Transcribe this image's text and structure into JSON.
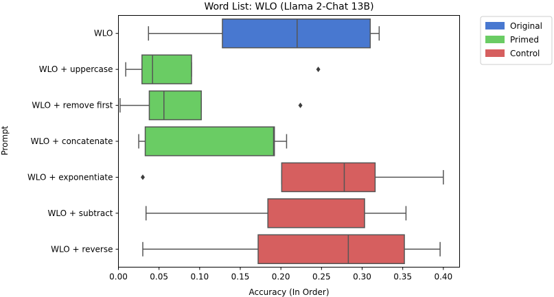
{
  "chart_data": {
    "type": "boxplot",
    "orientation": "horizontal",
    "title": "Word List: WLO (Llama 2-Chat 13B)",
    "xlabel": "Accuracy (In Order)",
    "ylabel": "Prompt",
    "xlim": [
      0.0,
      0.42
    ],
    "xticks": [
      "0.00",
      "0.05",
      "0.10",
      "0.15",
      "0.20",
      "0.25",
      "0.30",
      "0.35",
      "0.40"
    ],
    "grid": false,
    "legend_position": "outside-top-right",
    "legend": [
      {
        "name": "Original",
        "color": "#4878d0"
      },
      {
        "name": "Primed",
        "color": "#6acc64"
      },
      {
        "name": "Control",
        "color": "#d65f5f"
      }
    ],
    "categories": [
      {
        "label": "WLO",
        "group": "Original",
        "whisker_low": 0.037,
        "q1": 0.128,
        "median": 0.22,
        "q3": 0.31,
        "whisker_high": 0.321,
        "outliers": []
      },
      {
        "label": "WLO + uppercase",
        "group": "Primed",
        "whisker_low": 0.009,
        "q1": 0.029,
        "median": 0.042,
        "q3": 0.09,
        "whisker_high": 0.09,
        "outliers": [
          0.246
        ]
      },
      {
        "label": "WLO + remove first",
        "group": "Primed",
        "whisker_low": 0.002,
        "q1": 0.038,
        "median": 0.056,
        "q3": 0.102,
        "whisker_high": 0.102,
        "outliers": [
          0.224
        ]
      },
      {
        "label": "WLO + concatenate",
        "group": "Primed",
        "whisker_low": 0.025,
        "q1": 0.033,
        "median": 0.191,
        "q3": 0.192,
        "whisker_high": 0.207,
        "outliers": []
      },
      {
        "label": "WLO + exponentiate",
        "group": "Control",
        "whisker_low": 0.201,
        "q1": 0.201,
        "median": 0.278,
        "q3": 0.316,
        "whisker_high": 0.4,
        "outliers": [
          0.03
        ]
      },
      {
        "label": "WLO + subtract",
        "group": "Control",
        "whisker_low": 0.034,
        "q1": 0.184,
        "median": 0.184,
        "q3": 0.303,
        "whisker_high": 0.354,
        "outliers": []
      },
      {
        "label": "WLO + reverse",
        "group": "Control",
        "whisker_low": 0.03,
        "q1": 0.172,
        "median": 0.283,
        "q3": 0.352,
        "whisker_high": 0.396,
        "outliers": []
      }
    ]
  }
}
